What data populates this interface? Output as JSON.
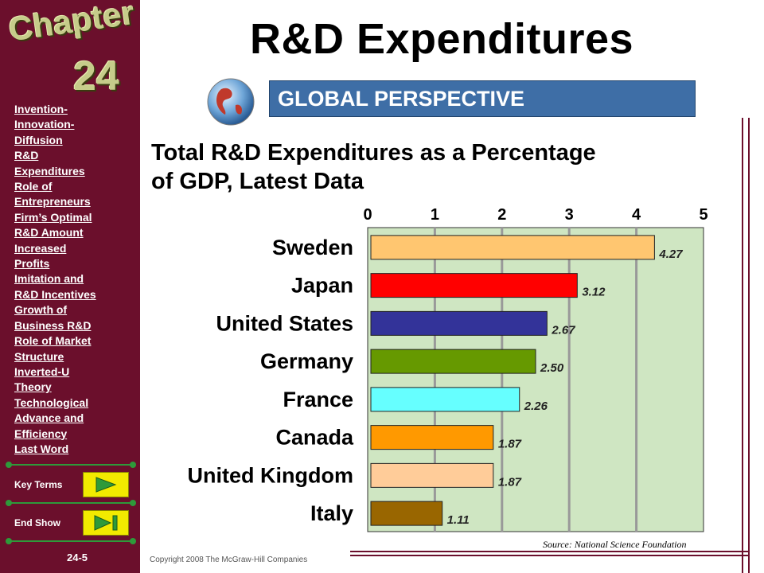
{
  "title": "R&D Expenditures",
  "banner": "GLOBAL PERSPECTIVE",
  "subtitle_line1": "Total R&D Expenditures as a Percentage",
  "subtitle_line2": "of GDP, Latest Data",
  "sidebar": {
    "chapter_word": "Chapter",
    "chapter_number": "24",
    "nav_items": [
      "Invention-",
      "Innovation-",
      "Diffusion",
      "R&D",
      "Expenditures",
      "Role of",
      "Entrepreneurs",
      "Firm’s Optimal",
      "R&D Amount",
      "Increased",
      "Profits",
      "Imitation and",
      "R&D Incentives",
      "Growth of",
      "Business R&D",
      "Role of Market",
      "Structure",
      "Inverted-U",
      "Theory",
      "Technological",
      "Advance and",
      "Efficiency",
      "Last Word"
    ],
    "key_terms_label": "Key Terms",
    "end_show_label": "End Show",
    "page_number": "24-5"
  },
  "copyright": "Copyright 2008 The McGraw-Hill Companies",
  "source": "Source: National Science Foundation",
  "colors": {
    "sidebar": "#6b0f2c",
    "banner": "#3e6ea6",
    "plot_background": "#cfe6c2"
  },
  "chart_data": {
    "type": "bar",
    "orientation": "horizontal",
    "categories": [
      "Sweden",
      "Japan",
      "United States",
      "Germany",
      "France",
      "Canada",
      "United Kingdom",
      "Italy"
    ],
    "values": [
      4.27,
      3.12,
      2.67,
      2.5,
      2.26,
      1.87,
      1.87,
      1.11
    ],
    "value_labels": [
      "4.27",
      "3.12",
      "2.67",
      "2.50",
      "2.26",
      "1.87",
      "1.87",
      "1.11"
    ],
    "bar_colors": [
      "#ffc670",
      "#ff0000",
      "#333399",
      "#669900",
      "#66ffff",
      "#ff9900",
      "#ffcc99",
      "#996600"
    ],
    "xticks": [
      "0",
      "1",
      "2",
      "3",
      "4",
      "5"
    ],
    "xlim": [
      0,
      5
    ],
    "grid": true,
    "axis_position": "top"
  }
}
